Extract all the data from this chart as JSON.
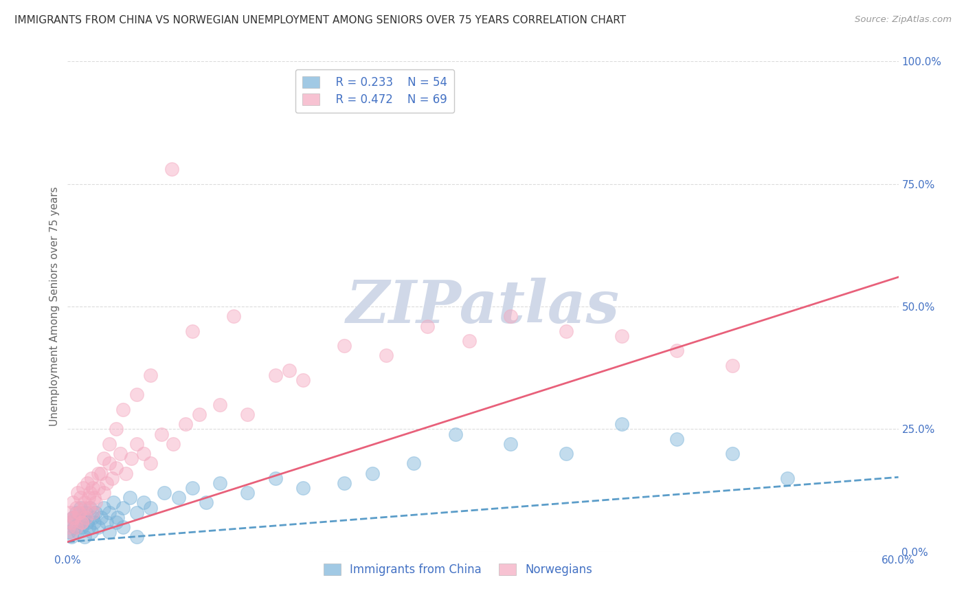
{
  "title": "IMMIGRANTS FROM CHINA VS NORWEGIAN UNEMPLOYMENT AMONG SENIORS OVER 75 YEARS CORRELATION CHART",
  "source": "Source: ZipAtlas.com",
  "ylabel": "Unemployment Among Seniors over 75 years",
  "xlim": [
    0.0,
    0.6
  ],
  "ylim": [
    0.0,
    1.0
  ],
  "xticks": [
    0.0,
    0.6
  ],
  "xticklabels": [
    "0.0%",
    "60.0%"
  ],
  "yticks_right": [
    0.0,
    0.25,
    0.5,
    0.75,
    1.0
  ],
  "yticklabels_right": [
    "0.0%",
    "25.0%",
    "50.0%",
    "75.0%",
    "100.0%"
  ],
  "legend_blue_r": "R = 0.233",
  "legend_blue_n": "N = 54",
  "legend_pink_r": "R = 0.472",
  "legend_pink_n": "N = 69",
  "blue_color": "#7ab3d9",
  "pink_color": "#f4a8bf",
  "blue_line_color": "#5b9dc9",
  "pink_line_color": "#e8607a",
  "watermark": "ZIPatlas",
  "watermark_color": "#d0d8e8",
  "background_color": "#ffffff",
  "grid_color": "#cccccc",
  "title_color": "#333333",
  "axis_label_color": "#666666",
  "tick_label_color": "#4472c4",
  "blue_intercept": 0.02,
  "blue_slope": 0.22,
  "pink_intercept": 0.02,
  "pink_slope": 0.9,
  "blue_scatter_x": [
    0.001,
    0.002,
    0.003,
    0.004,
    0.005,
    0.006,
    0.007,
    0.008,
    0.009,
    0.01,
    0.011,
    0.012,
    0.013,
    0.014,
    0.015,
    0.016,
    0.017,
    0.018,
    0.019,
    0.02,
    0.022,
    0.024,
    0.026,
    0.028,
    0.03,
    0.033,
    0.036,
    0.04,
    0.045,
    0.05,
    0.055,
    0.06,
    0.07,
    0.08,
    0.09,
    0.1,
    0.11,
    0.13,
    0.15,
    0.17,
    0.2,
    0.22,
    0.25,
    0.28,
    0.32,
    0.36,
    0.4,
    0.44,
    0.48,
    0.52,
    0.03,
    0.035,
    0.04,
    0.05
  ],
  "blue_scatter_y": [
    0.04,
    0.06,
    0.03,
    0.07,
    0.05,
    0.08,
    0.04,
    0.06,
    0.09,
    0.05,
    0.07,
    0.03,
    0.08,
    0.06,
    0.05,
    0.09,
    0.04,
    0.07,
    0.06,
    0.08,
    0.05,
    0.07,
    0.09,
    0.06,
    0.08,
    0.1,
    0.07,
    0.09,
    0.11,
    0.08,
    0.1,
    0.09,
    0.12,
    0.11,
    0.13,
    0.1,
    0.14,
    0.12,
    0.15,
    0.13,
    0.14,
    0.16,
    0.18,
    0.24,
    0.22,
    0.2,
    0.26,
    0.23,
    0.2,
    0.15,
    0.04,
    0.06,
    0.05,
    0.03
  ],
  "pink_scatter_x": [
    0.001,
    0.002,
    0.003,
    0.004,
    0.005,
    0.006,
    0.007,
    0.008,
    0.009,
    0.01,
    0.011,
    0.012,
    0.013,
    0.014,
    0.015,
    0.016,
    0.017,
    0.018,
    0.019,
    0.02,
    0.022,
    0.024,
    0.026,
    0.028,
    0.03,
    0.032,
    0.035,
    0.038,
    0.042,
    0.046,
    0.05,
    0.055,
    0.06,
    0.068,
    0.076,
    0.085,
    0.095,
    0.11,
    0.13,
    0.15,
    0.17,
    0.2,
    0.23,
    0.26,
    0.29,
    0.32,
    0.36,
    0.4,
    0.44,
    0.48,
    0.003,
    0.004,
    0.006,
    0.008,
    0.01,
    0.012,
    0.015,
    0.018,
    0.022,
    0.026,
    0.03,
    0.035,
    0.04,
    0.05,
    0.06,
    0.075,
    0.09,
    0.12,
    0.16
  ],
  "pink_scatter_y": [
    0.05,
    0.08,
    0.06,
    0.1,
    0.07,
    0.09,
    0.12,
    0.08,
    0.11,
    0.06,
    0.13,
    0.1,
    0.07,
    0.14,
    0.09,
    0.12,
    0.15,
    0.08,
    0.11,
    0.1,
    0.13,
    0.16,
    0.12,
    0.14,
    0.18,
    0.15,
    0.17,
    0.2,
    0.16,
    0.19,
    0.22,
    0.2,
    0.18,
    0.24,
    0.22,
    0.26,
    0.28,
    0.3,
    0.28,
    0.36,
    0.35,
    0.42,
    0.4,
    0.46,
    0.43,
    0.48,
    0.45,
    0.44,
    0.41,
    0.38,
    0.04,
    0.07,
    0.05,
    0.08,
    0.06,
    0.09,
    0.11,
    0.13,
    0.16,
    0.19,
    0.22,
    0.25,
    0.29,
    0.32,
    0.36,
    0.78,
    0.45,
    0.48,
    0.37
  ]
}
